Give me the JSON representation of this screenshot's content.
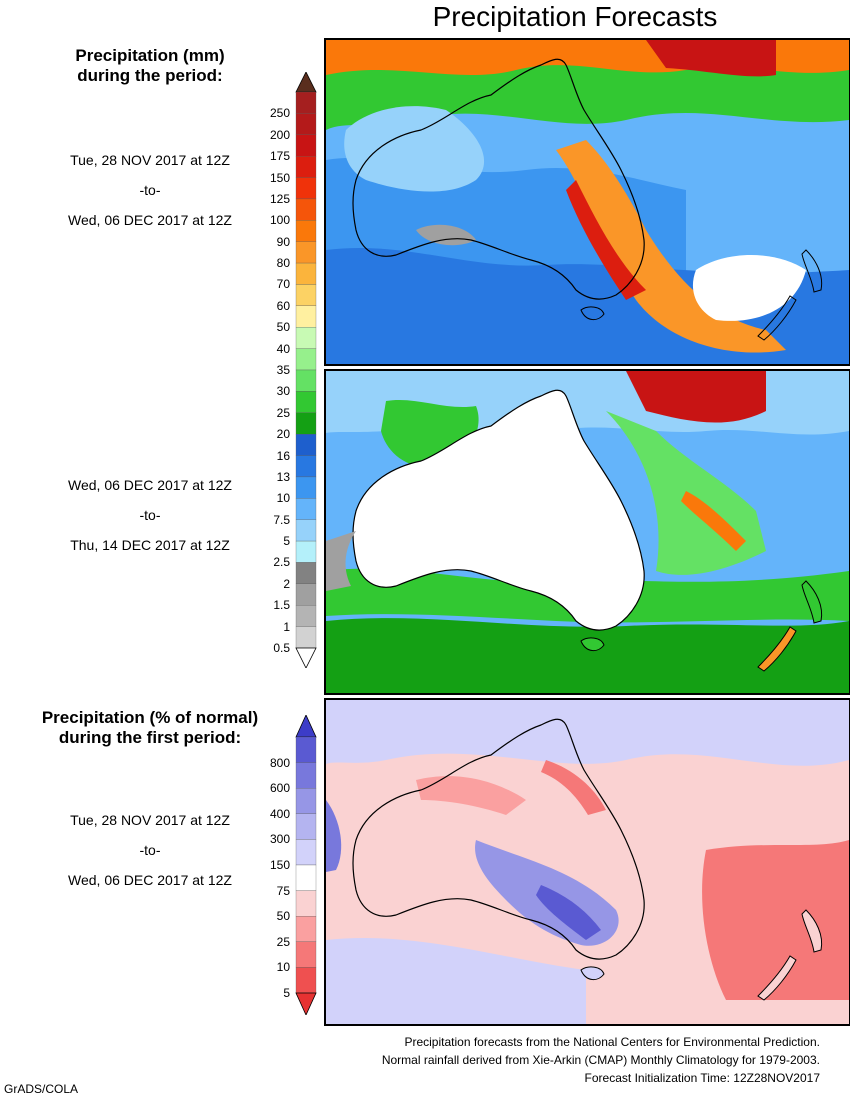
{
  "title": "Precipitation Forecasts",
  "section1": {
    "heading_line1": "Precipitation (mm)",
    "heading_line2": "during the period:"
  },
  "periods": [
    {
      "start": "Tue, 28 NOV 2017 at 12Z",
      "sep": "-to-",
      "end": "Wed, 06 DEC 2017 at 12Z"
    },
    {
      "start": "Wed, 06 DEC 2017 at 12Z",
      "sep": "-to-",
      "end": "Thu, 14 DEC 2017 at 12Z"
    },
    {
      "start": "Tue, 28 NOV 2017 at 12Z",
      "sep": "-to-",
      "end": "Wed, 06 DEC 2017 at 12Z"
    }
  ],
  "section2": {
    "heading_line1": "Precipitation (% of normal)",
    "heading_line2": "during the first period:"
  },
  "mm_scale": {
    "labels": [
      "250",
      "200",
      "175",
      "150",
      "125",
      "100",
      "90",
      "80",
      "70",
      "60",
      "50",
      "40",
      "35",
      "30",
      "25",
      "20",
      "16",
      "13",
      "10",
      "7.5",
      "5",
      "2.5",
      "2",
      "1.5",
      "1",
      "0.5"
    ],
    "colors": [
      "#a51f1f",
      "#b41a1a",
      "#c81414",
      "#dc1e0f",
      "#f0320a",
      "#f5550a",
      "#fa780a",
      "#fa9628",
      "#fbb43c",
      "#fcd264",
      "#fff0a0",
      "#c8fab4",
      "#96f08c",
      "#64e164",
      "#32c832",
      "#14a014",
      "#1e5fcd",
      "#2878e1",
      "#3c96f0",
      "#64b4fa",
      "#96d2fa",
      "#b4f0fa",
      "#828282",
      "#a0a0a0",
      "#b4b4b4",
      "#d2d2d2"
    ],
    "top_color": "#5a2e1e",
    "bottom_color": "#ffffff"
  },
  "pct_scale": {
    "labels": [
      "800",
      "600",
      "400",
      "300",
      "150",
      "75",
      "50",
      "25",
      "10",
      "5"
    ],
    "colors": [
      "#5a5ad2",
      "#7878dc",
      "#9696e6",
      "#b4b4f0",
      "#d2d2fa",
      "#ffffff",
      "#fad2d2",
      "#faa0a0",
      "#f57878",
      "#ef5050"
    ],
    "top_color": "#3c3cc8",
    "bottom_color": "#e63232"
  },
  "credits": {
    "line1": "Precipitation forecasts from the National Centers for Environmental Prediction.",
    "line2": "Normal rainfall derived from Xie-Arkin (CMAP) Monthly Climatology for 1979-2003.",
    "line3": "Forecast Initialization Time: 12Z28NOV2017"
  },
  "grads_label": "GrADS/COLA"
}
